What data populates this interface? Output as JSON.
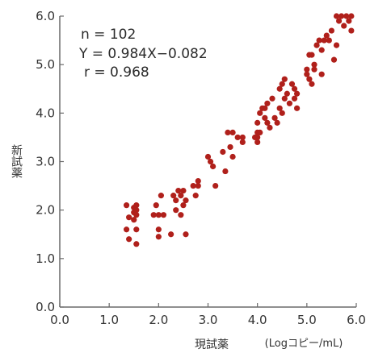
{
  "chart_data": {
    "type": "scatter",
    "xlabel": "現試薬",
    "ylabel": "新試薬",
    "unit": "(Logコピー/mL)",
    "xlim": [
      0.0,
      6.0
    ],
    "ylim": [
      0.0,
      6.0
    ],
    "x_ticks": [
      "0.0",
      "1.0",
      "2.0",
      "3.0",
      "4.0",
      "5.0",
      "6.0"
    ],
    "y_ticks": [
      "0.0",
      "1.0",
      "2.0",
      "3.0",
      "4.0",
      "5.0",
      "6.0"
    ],
    "annotations": [
      "n = 102",
      "Y = 0.984X−0.082",
      "r = 0.968"
    ],
    "grid": false,
    "marker_color": "#b0201b",
    "points": [
      [
        1.35,
        2.1
      ],
      [
        1.35,
        1.6
      ],
      [
        1.4,
        1.85
      ],
      [
        1.4,
        1.4
      ],
      [
        1.5,
        2.05
      ],
      [
        1.5,
        1.95
      ],
      [
        1.5,
        1.8
      ],
      [
        1.55,
        2.1
      ],
      [
        1.55,
        2.0
      ],
      [
        1.55,
        1.9
      ],
      [
        1.55,
        1.6
      ],
      [
        1.55,
        1.3
      ],
      [
        1.9,
        1.9
      ],
      [
        1.95,
        2.1
      ],
      [
        2.0,
        1.9
      ],
      [
        2.0,
        1.6
      ],
      [
        2.0,
        1.45
      ],
      [
        2.05,
        2.3
      ],
      [
        2.1,
        1.9
      ],
      [
        2.25,
        1.5
      ],
      [
        2.3,
        2.3
      ],
      [
        2.35,
        2.2
      ],
      [
        2.35,
        2.0
      ],
      [
        2.4,
        2.4
      ],
      [
        2.45,
        2.3
      ],
      [
        2.45,
        1.9
      ],
      [
        2.5,
        2.4
      ],
      [
        2.5,
        2.1
      ],
      [
        2.55,
        2.2
      ],
      [
        2.55,
        1.5
      ],
      [
        2.7,
        2.5
      ],
      [
        2.75,
        2.3
      ],
      [
        2.8,
        2.5
      ],
      [
        2.8,
        2.6
      ],
      [
        3.0,
        3.1
      ],
      [
        3.05,
        3.0
      ],
      [
        3.1,
        2.9
      ],
      [
        3.15,
        2.5
      ],
      [
        3.3,
        3.2
      ],
      [
        3.35,
        2.8
      ],
      [
        3.4,
        3.6
      ],
      [
        3.45,
        3.3
      ],
      [
        3.5,
        3.6
      ],
      [
        3.5,
        3.1
      ],
      [
        3.6,
        3.5
      ],
      [
        3.7,
        3.5
      ],
      [
        3.7,
        3.4
      ],
      [
        3.95,
        3.5
      ],
      [
        4.0,
        3.6
      ],
      [
        4.0,
        3.5
      ],
      [
        4.0,
        3.4
      ],
      [
        4.0,
        3.8
      ],
      [
        4.05,
        3.6
      ],
      [
        4.05,
        4.0
      ],
      [
        4.1,
        4.1
      ],
      [
        4.15,
        3.9
      ],
      [
        4.15,
        4.1
      ],
      [
        4.2,
        4.2
      ],
      [
        4.2,
        3.8
      ],
      [
        4.25,
        3.7
      ],
      [
        4.3,
        4.3
      ],
      [
        4.35,
        3.9
      ],
      [
        4.4,
        3.8
      ],
      [
        4.45,
        4.1
      ],
      [
        4.45,
        4.5
      ],
      [
        4.5,
        4.6
      ],
      [
        4.5,
        4.0
      ],
      [
        4.55,
        4.7
      ],
      [
        4.55,
        4.3
      ],
      [
        4.6,
        4.4
      ],
      [
        4.65,
        4.2
      ],
      [
        4.7,
        4.6
      ],
      [
        4.75,
        4.5
      ],
      [
        4.75,
        4.3
      ],
      [
        4.8,
        4.1
      ],
      [
        4.8,
        4.4
      ],
      [
        5.0,
        4.9
      ],
      [
        5.0,
        4.8
      ],
      [
        5.05,
        4.7
      ],
      [
        5.05,
        5.2
      ],
      [
        5.1,
        5.2
      ],
      [
        5.1,
        4.6
      ],
      [
        5.15,
        5.0
      ],
      [
        5.15,
        4.9
      ],
      [
        5.2,
        5.4
      ],
      [
        5.25,
        5.5
      ],
      [
        5.3,
        5.3
      ],
      [
        5.3,
        4.8
      ],
      [
        5.35,
        5.5
      ],
      [
        5.4,
        5.6
      ],
      [
        5.45,
        5.5
      ],
      [
        5.5,
        5.7
      ],
      [
        5.55,
        5.1
      ],
      [
        5.6,
        5.4
      ],
      [
        5.6,
        6.0
      ],
      [
        5.65,
        5.9
      ],
      [
        5.7,
        6.0
      ],
      [
        5.75,
        5.8
      ],
      [
        5.8,
        6.0
      ],
      [
        5.85,
        5.9
      ],
      [
        5.9,
        6.0
      ],
      [
        5.9,
        5.7
      ]
    ]
  }
}
